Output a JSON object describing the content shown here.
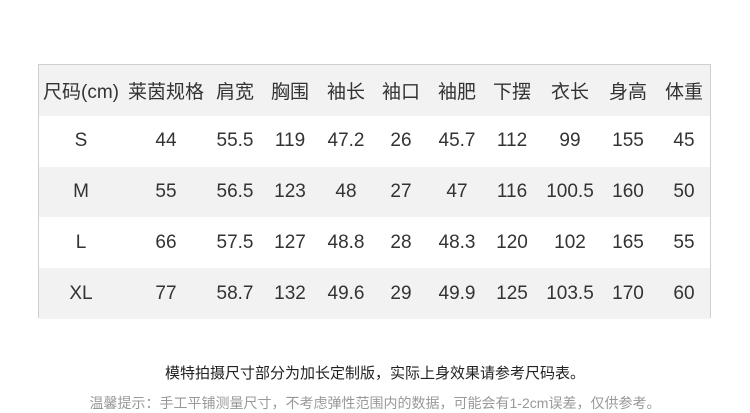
{
  "table": {
    "headers": [
      "尺码(cm)",
      "莱茵规格",
      "肩宽",
      "胸围",
      "袖长",
      "袖口",
      "袖肥",
      "下摆",
      "衣长",
      "身高",
      "体重"
    ],
    "rows": [
      [
        "S",
        "44",
        "55.5",
        "119",
        "47.2",
        "26",
        "45.7",
        "112",
        "99",
        "155",
        "45"
      ],
      [
        "M",
        "55",
        "56.5",
        "123",
        "48",
        "27",
        "47",
        "116",
        "100.5",
        "160",
        "50"
      ],
      [
        "L",
        "66",
        "57.5",
        "127",
        "48.8",
        "28",
        "48.3",
        "120",
        "102",
        "165",
        "55"
      ],
      [
        "XL",
        "77",
        "58.7",
        "132",
        "49.6",
        "29",
        "49.9",
        "125",
        "103.5",
        "170",
        "60"
      ]
    ]
  },
  "notes": {
    "main": "模特拍摄尺寸部分为加长定制版，实际上身效果请参考尺码表。",
    "hint": "温馨提示：手工平铺测量尺寸，不考虑弹性范围内的数据，可能会有1-2cm误差，仅供参考。"
  }
}
